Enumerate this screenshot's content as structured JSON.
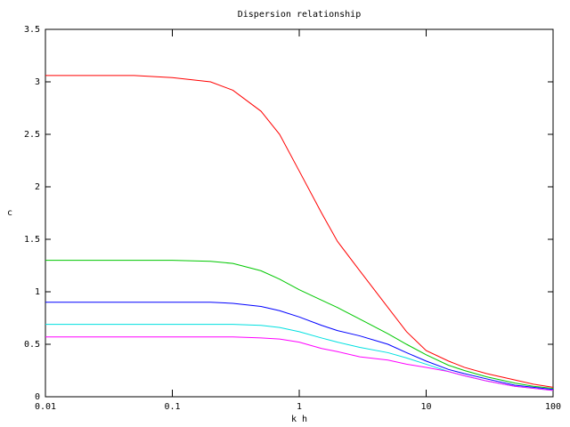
{
  "chart_data": {
    "type": "line",
    "title": "Dispersion relationship",
    "x_label": "k h",
    "y_label": "c",
    "x": [
      0.01,
      0.02,
      0.05,
      0.1,
      0.2,
      0.3,
      0.5,
      0.7,
      1,
      1.5,
      2,
      3,
      5,
      7,
      10,
      15,
      20,
      30,
      50,
      70,
      100
    ],
    "series": [
      {
        "color": "#ff0000",
        "values": [
          3.06,
          3.06,
          3.06,
          3.04,
          3.0,
          2.92,
          2.72,
          2.5,
          2.15,
          1.75,
          1.48,
          1.2,
          0.85,
          0.62,
          0.44,
          0.34,
          0.28,
          0.22,
          0.16,
          0.12,
          0.09
        ]
      },
      {
        "color": "#00c800",
        "values": [
          1.3,
          1.3,
          1.3,
          1.3,
          1.29,
          1.27,
          1.2,
          1.12,
          1.02,
          0.92,
          0.85,
          0.74,
          0.6,
          0.5,
          0.4,
          0.3,
          0.25,
          0.19,
          0.13,
          0.1,
          0.08
        ]
      },
      {
        "color": "#0000ff",
        "values": [
          0.9,
          0.9,
          0.9,
          0.9,
          0.9,
          0.89,
          0.86,
          0.82,
          0.76,
          0.68,
          0.63,
          0.58,
          0.5,
          0.42,
          0.34,
          0.26,
          0.22,
          0.17,
          0.11,
          0.09,
          0.07
        ]
      },
      {
        "color": "#00e0e0",
        "values": [
          0.69,
          0.69,
          0.69,
          0.69,
          0.69,
          0.69,
          0.68,
          0.66,
          0.62,
          0.56,
          0.52,
          0.47,
          0.42,
          0.37,
          0.31,
          0.24,
          0.2,
          0.15,
          0.1,
          0.08,
          0.06
        ]
      },
      {
        "color": "#ff00ff",
        "values": [
          0.57,
          0.57,
          0.57,
          0.57,
          0.57,
          0.57,
          0.56,
          0.55,
          0.52,
          0.46,
          0.43,
          0.38,
          0.35,
          0.31,
          0.28,
          0.24,
          0.2,
          0.15,
          0.1,
          0.08,
          0.06
        ]
      }
    ],
    "xlog": true,
    "xlim": [
      0.01,
      100
    ],
    "xticks": [
      0.01,
      0.1,
      1,
      10,
      100
    ],
    "ylim": [
      0,
      3.5
    ],
    "yticks": [
      0,
      0.5,
      1,
      1.5,
      2,
      2.5,
      3,
      3.5
    ]
  }
}
